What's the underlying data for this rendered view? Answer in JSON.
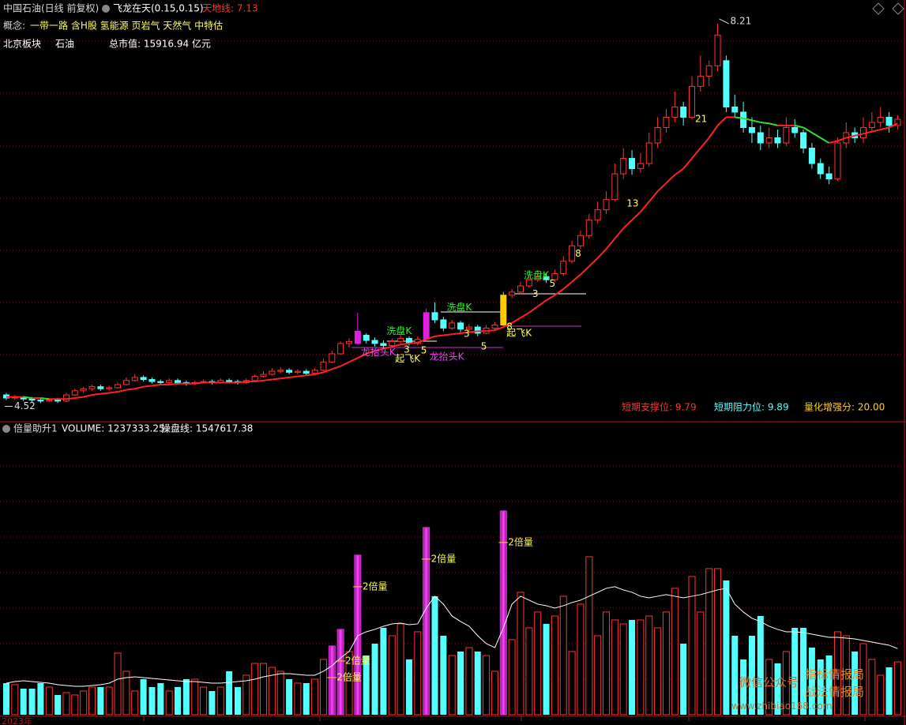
{
  "header": {
    "title": "中国石油(日线 前复权)",
    "indicator": "飞龙在天(0.15,0.15)",
    "tiandi": "天地线: 7.13",
    "concept_label": "概念:",
    "concepts": "一带一路 含H股 氢能源 页岩气 天然气 中特估",
    "sector_label": "北京板块",
    "sector": "石油",
    "market_cap": "总市值: 15916.94 亿元"
  },
  "stats": {
    "support": "短期支撑位: 9.79",
    "resistance": "短期阻力位: 9.89",
    "score": "量化增强分: 20.00"
  },
  "volume_title": {
    "name": "倍量助升1",
    "volume": "VOLUME: 1237333.25",
    "line": "操盘线: 1547617.38"
  },
  "watermark": {
    "label": "微信公众号",
    "name1": "指标情报局",
    "name2": "战法情报局",
    "url": "www.zhibiao168.com"
  },
  "date_label": "2023年",
  "chart_data": [
    {
      "type": "candlestick",
      "ylim": [
        4.37,
        8.44
      ],
      "up_color": "#ff3232",
      "down_color": "#54ffff",
      "max_label": 8.21,
      "max_index": 83,
      "min_label": 4.52,
      "min_index": 4,
      "highlights": [
        {
          "index": 41,
          "color": "#dd22dd"
        },
        {
          "index": 49,
          "color": "#dd22dd"
        },
        {
          "index": 58,
          "color": "#ffcc00"
        }
      ],
      "candles": [
        [
          4.6,
          4.62,
          4.55,
          4.57
        ],
        [
          4.57,
          4.6,
          4.55,
          4.58
        ],
        [
          4.58,
          4.59,
          4.54,
          4.56
        ],
        [
          4.56,
          4.58,
          4.53,
          4.55
        ],
        [
          4.55,
          4.57,
          4.52,
          4.54
        ],
        [
          4.54,
          4.57,
          4.53,
          4.55
        ],
        [
          4.55,
          4.57,
          4.52,
          4.54
        ],
        [
          4.54,
          4.62,
          4.53,
          4.6
        ],
        [
          4.6,
          4.66,
          4.59,
          4.64
        ],
        [
          4.64,
          4.68,
          4.62,
          4.66
        ],
        [
          4.66,
          4.7,
          4.64,
          4.68
        ],
        [
          4.68,
          4.7,
          4.64,
          4.66
        ],
        [
          4.66,
          4.69,
          4.64,
          4.67
        ],
        [
          4.67,
          4.72,
          4.66,
          4.7
        ],
        [
          4.7,
          4.77,
          4.69,
          4.74
        ],
        [
          4.74,
          4.8,
          4.73,
          4.77
        ],
        [
          4.77,
          4.79,
          4.73,
          4.75
        ],
        [
          4.75,
          4.77,
          4.71,
          4.73
        ],
        [
          4.73,
          4.75,
          4.7,
          4.72
        ],
        [
          4.72,
          4.76,
          4.71,
          4.74
        ],
        [
          4.74,
          4.76,
          4.7,
          4.72
        ],
        [
          4.72,
          4.74,
          4.69,
          4.71
        ],
        [
          4.71,
          4.74,
          4.7,
          4.72
        ],
        [
          4.72,
          4.75,
          4.71,
          4.73
        ],
        [
          4.73,
          4.75,
          4.7,
          4.72
        ],
        [
          4.72,
          4.76,
          4.71,
          4.74
        ],
        [
          4.74,
          4.76,
          4.71,
          4.73
        ],
        [
          4.73,
          4.75,
          4.7,
          4.72
        ],
        [
          4.72,
          4.76,
          4.71,
          4.74
        ],
        [
          4.74,
          4.8,
          4.73,
          4.78
        ],
        [
          4.78,
          4.83,
          4.77,
          4.8
        ],
        [
          4.8,
          4.86,
          4.79,
          4.83
        ],
        [
          4.83,
          4.87,
          4.81,
          4.84
        ],
        [
          4.84,
          4.86,
          4.8,
          4.82
        ],
        [
          4.82,
          4.85,
          4.8,
          4.83
        ],
        [
          4.83,
          4.85,
          4.79,
          4.81
        ],
        [
          4.81,
          4.86,
          4.8,
          4.84
        ],
        [
          4.84,
          4.95,
          4.83,
          4.92
        ],
        [
          4.92,
          5.03,
          4.91,
          5.0
        ],
        [
          5.0,
          5.12,
          4.99,
          5.1
        ],
        [
          5.1,
          5.15,
          5.06,
          5.12
        ],
        [
          5.1,
          5.4,
          5.09,
          5.22
        ],
        [
          5.18,
          5.2,
          5.1,
          5.13
        ],
        [
          5.13,
          5.16,
          5.07,
          5.1
        ],
        [
          5.1,
          5.13,
          5.05,
          5.08
        ],
        [
          5.08,
          5.15,
          5.06,
          5.12
        ],
        [
          5.12,
          5.18,
          5.1,
          5.15
        ],
        [
          5.15,
          5.17,
          5.08,
          5.1
        ],
        [
          5.1,
          5.17,
          5.08,
          5.14
        ],
        [
          5.14,
          5.44,
          5.12,
          5.4
        ],
        [
          5.4,
          5.5,
          5.3,
          5.33
        ],
        [
          5.33,
          5.36,
          5.22,
          5.25
        ],
        [
          5.25,
          5.33,
          5.23,
          5.3
        ],
        [
          5.3,
          5.32,
          5.21,
          5.24
        ],
        [
          5.24,
          5.29,
          5.22,
          5.26
        ],
        [
          5.26,
          5.28,
          5.17,
          5.2
        ],
        [
          5.2,
          5.28,
          5.19,
          5.25
        ],
        [
          5.25,
          5.31,
          5.23,
          5.28
        ],
        [
          5.28,
          5.6,
          5.27,
          5.57
        ],
        [
          5.57,
          5.63,
          5.54,
          5.6
        ],
        [
          5.6,
          5.7,
          5.58,
          5.66
        ],
        [
          5.66,
          5.76,
          5.64,
          5.72
        ],
        [
          5.72,
          5.78,
          5.7,
          5.75
        ],
        [
          5.75,
          5.78,
          5.69,
          5.72
        ],
        [
          5.72,
          5.82,
          5.7,
          5.78
        ],
        [
          5.78,
          5.95,
          5.76,
          5.9
        ],
        [
          5.9,
          6.1,
          5.88,
          6.05
        ],
        [
          6.05,
          6.2,
          6.02,
          6.15
        ],
        [
          6.15,
          6.36,
          6.12,
          6.3
        ],
        [
          6.3,
          6.48,
          6.27,
          6.4
        ],
        [
          6.4,
          6.58,
          6.36,
          6.5
        ],
        [
          6.5,
          6.85,
          6.48,
          6.75
        ],
        [
          6.75,
          7.0,
          6.7,
          6.9
        ],
        [
          6.9,
          6.98,
          6.74,
          6.8
        ],
        [
          6.8,
          6.95,
          6.76,
          6.85
        ],
        [
          6.85,
          7.15,
          6.82,
          7.05
        ],
        [
          7.05,
          7.3,
          7.0,
          7.2
        ],
        [
          7.2,
          7.38,
          7.15,
          7.3
        ],
        [
          7.3,
          7.55,
          7.25,
          7.4
        ],
        [
          7.4,
          7.45,
          7.22,
          7.3
        ],
        [
          7.3,
          7.7,
          7.28,
          7.6
        ],
        [
          7.6,
          7.9,
          7.55,
          7.7
        ],
        [
          7.7,
          7.85,
          7.6,
          7.8
        ],
        [
          7.8,
          8.21,
          7.75,
          8.1
        ],
        [
          7.85,
          7.9,
          7.35,
          7.4
        ],
        [
          7.4,
          7.52,
          7.3,
          7.35
        ],
        [
          7.35,
          7.45,
          7.15,
          7.2
        ],
        [
          7.2,
          7.3,
          7.05,
          7.15
        ],
        [
          7.15,
          7.22,
          6.98,
          7.05
        ],
        [
          7.05,
          7.2,
          7.0,
          7.1
        ],
        [
          7.1,
          7.18,
          7.0,
          7.05
        ],
        [
          7.05,
          7.3,
          7.02,
          7.2
        ],
        [
          7.2,
          7.28,
          7.1,
          7.15
        ],
        [
          7.15,
          7.18,
          6.95,
          7.0
        ],
        [
          7.0,
          7.05,
          6.8,
          6.85
        ],
        [
          6.85,
          6.9,
          6.7,
          6.75
        ],
        [
          6.75,
          6.82,
          6.65,
          6.7
        ],
        [
          6.7,
          7.1,
          6.68,
          7.05
        ],
        [
          7.05,
          7.25,
          7.0,
          7.15
        ],
        [
          7.15,
          7.2,
          7.05,
          7.1
        ],
        [
          7.1,
          7.3,
          7.05,
          7.2
        ],
        [
          7.2,
          7.35,
          7.15,
          7.25
        ],
        [
          7.25,
          7.4,
          7.2,
          7.3
        ],
        [
          7.3,
          7.35,
          7.15,
          7.22
        ],
        [
          7.22,
          7.32,
          7.18,
          7.28
        ]
      ],
      "ma": {
        "up_color": "#ff2222",
        "down_color": "#33dd33",
        "values": [
          4.58,
          4.58,
          4.58,
          4.57,
          4.57,
          4.56,
          4.56,
          4.56,
          4.57,
          4.58,
          4.6,
          4.61,
          4.62,
          4.63,
          4.65,
          4.66,
          4.68,
          4.69,
          4.7,
          4.7,
          4.71,
          4.71,
          4.71,
          4.72,
          4.72,
          4.72,
          4.72,
          4.72,
          4.73,
          4.73,
          4.74,
          4.75,
          4.76,
          4.77,
          4.78,
          4.79,
          4.8,
          4.82,
          4.85,
          4.88,
          4.92,
          4.96,
          5.0,
          5.03,
          5.05,
          5.07,
          5.09,
          5.1,
          5.11,
          5.14,
          5.17,
          5.18,
          5.19,
          5.2,
          5.21,
          5.22,
          5.22,
          5.23,
          5.26,
          5.3,
          5.35,
          5.4,
          5.46,
          5.52,
          5.57,
          5.63,
          5.7,
          5.77,
          5.85,
          5.93,
          6.02,
          6.12,
          6.22,
          6.3,
          6.38,
          6.48,
          6.58,
          6.66,
          6.74,
          6.8,
          6.9,
          7.0,
          7.1,
          7.22,
          7.3,
          7.3,
          7.29,
          7.27,
          7.25,
          7.24,
          7.22,
          7.22,
          7.22,
          7.2,
          7.15,
          7.1,
          7.05,
          7.07,
          7.1,
          7.12,
          7.14,
          7.16,
          7.18,
          7.2,
          7.24
        ]
      },
      "annotations": [
        {
          "text": "洗盘K",
          "index": 51,
          "price": 5.45,
          "color": "#33ee33"
        },
        {
          "text": "洗盘K",
          "index": 60,
          "price": 5.76,
          "color": "#33ee33"
        },
        {
          "text": "洗盘K",
          "index": 44,
          "price": 5.22,
          "color": "#33ee33"
        },
        {
          "text": "龙抬头K",
          "index": 41,
          "price": 5.01,
          "color": "#ee44ee"
        },
        {
          "text": "龙抬头K",
          "index": 49,
          "price": 4.97,
          "color": "#ee44ee"
        },
        {
          "text": "起飞K",
          "index": 45,
          "price": 4.95,
          "color": "#ffff55"
        },
        {
          "text": "起飞K",
          "index": 58,
          "price": 5.2,
          "color": "#ffff55"
        },
        {
          "text": "3",
          "index": 46,
          "price": 5.04,
          "color": "#ffff55"
        },
        {
          "text": "5",
          "index": 48,
          "price": 5.03,
          "color": "#ffff55"
        },
        {
          "text": "3",
          "index": 53,
          "price": 5.19,
          "color": "#ffff55"
        },
        {
          "text": "5",
          "index": 55,
          "price": 5.07,
          "color": "#ffff55"
        },
        {
          "text": "8",
          "index": 58,
          "price": 5.26,
          "color": "#ffff55"
        },
        {
          "text": "3",
          "index": 61,
          "price": 5.58,
          "color": "#ffff55"
        },
        {
          "text": "5",
          "index": 63,
          "price": 5.68,
          "color": "#ffff55"
        },
        {
          "text": "8",
          "index": 66,
          "price": 5.97,
          "color": "#ffff55"
        },
        {
          "text": "13",
          "index": 72,
          "price": 6.46,
          "color": "#ffff55"
        },
        {
          "text": "21",
          "index": 80,
          "price": 7.28,
          "color": "#ffff55"
        }
      ]
    },
    {
      "type": "bar",
      "ylim": [
        0,
        6750000
      ],
      "highlight_color": "#e030e0",
      "highlights": [
        38,
        39,
        41,
        49,
        58
      ],
      "values": [
        740000,
        703000,
        610500,
        610500,
        740000,
        647500,
        462500,
        518000,
        462500,
        555000,
        647500,
        647500,
        647500,
        1443000,
        1017500,
        555000,
        832500,
        647500,
        740000,
        555000,
        647500,
        832500,
        832500,
        647500,
        555000,
        647500,
        1017500,
        647500,
        925000,
        1202500,
        1202500,
        1110000,
        1017500,
        832500,
        740000,
        740000,
        832500,
        1295000,
        1609500,
        1998000,
        1480000,
        3737000,
        1387500,
        1665000,
        2035000,
        1850000,
        2127500,
        1295000,
        1942500,
        4384500,
        2775000,
        1850000,
        1387500,
        1480000,
        1572500,
        1480000,
        1387500,
        1017500,
        4773000,
        1757500,
        2867500,
        2035000,
        2405000,
        2127500,
        2312500,
        2775000,
        1480000,
        2590000,
        3700000,
        1850000,
        2405000,
        2220000,
        2127500,
        2220000,
        2220000,
        2312500,
        2035000,
        2405000,
        2960000,
        1665000,
        3237500,
        2405000,
        3422500,
        3422500,
        3145000,
        1850000,
        1295000,
        1850000,
        2312500,
        1295000,
        1202500,
        1480000,
        2035000,
        2035000,
        1572500,
        1295000,
        1387500,
        1942500,
        1850000,
        1480000,
        1665000,
        1295000,
        925000,
        1110000,
        1237333.25
      ],
      "line": {
        "color": "#ffffff",
        "values": [
          740000,
          777000,
          795500,
          777000,
          758500,
          740000,
          703000,
          684500,
          666000,
          666000,
          684500,
          703000,
          740000,
          832500,
          869500,
          888000,
          869500,
          851000,
          832500,
          814000,
          795500,
          777000,
          777000,
          758500,
          740000,
          740000,
          758500,
          777000,
          795500,
          832500,
          888000,
          925000,
          962000,
          962000,
          943500,
          925000,
          925000,
          1017500,
          1147000,
          1332000,
          1480000,
          1850000,
          1942500,
          1998000,
          2072000,
          2127500,
          2146000,
          2109000,
          2127500,
          2497500,
          2775000,
          2590000,
          2312500,
          2183000,
          2072000,
          1850000,
          1665000,
          1572500,
          2035000,
          2590000,
          2775000,
          2682500,
          2590000,
          2553000,
          2497500,
          2553000,
          2627000,
          2682500,
          2775000,
          2867500,
          2960000,
          2997000,
          2923000,
          2867500,
          2775000,
          2738000,
          2775000,
          2812000,
          2775000,
          2738000,
          2775000,
          2812000,
          2867500,
          2923000,
          2960000,
          2590000,
          2405000,
          2257000,
          2183000,
          2072000,
          1998000,
          1942500,
          1942500,
          1924000,
          1887000,
          1850000,
          1813000,
          1813000,
          1794500,
          1776000,
          1739000,
          1702000,
          1665000,
          1628000,
          1547617.38
        ]
      },
      "double_labels": [
        {
          "index": 38,
          "text": "2倍量"
        },
        {
          "index": 39,
          "text": "2倍量"
        },
        {
          "index": 41,
          "text": "2倍量"
        },
        {
          "index": 49,
          "text": "2倍量"
        },
        {
          "index": 58,
          "text": "2倍量"
        }
      ]
    }
  ]
}
